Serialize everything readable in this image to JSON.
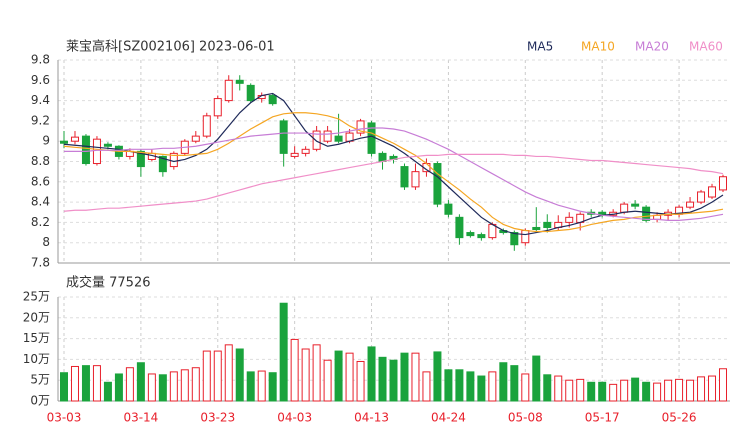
{
  "chart_data": [
    {
      "type": "candlestick",
      "title": "莱宝高科[SZ002106] 2023-06-01",
      "up_color": "#e8202b",
      "down_color": "#1aa33c",
      "grid": true,
      "ylim": [
        7.8,
        9.8
      ],
      "yticks": [
        7.8,
        8,
        8.2,
        8.4,
        8.6,
        8.8,
        9,
        9.2,
        9.4,
        9.6,
        9.8
      ],
      "open": [
        9.0,
        9.0,
        9.05,
        8.78,
        8.97,
        8.95,
        8.85,
        8.9,
        8.82,
        8.85,
        8.75,
        8.88,
        9.0,
        9.05,
        9.25,
        9.4,
        9.6,
        9.55,
        9.42,
        9.45,
        9.2,
        8.85,
        8.88,
        8.92,
        9.0,
        9.05,
        9.0,
        9.08,
        9.18,
        8.88,
        8.85,
        8.75,
        8.55,
        8.7,
        8.78,
        8.38,
        8.25,
        8.1,
        8.08,
        8.05,
        8.12,
        8.1,
        8.0,
        8.15,
        8.2,
        8.15,
        8.2,
        8.2,
        8.3,
        8.3,
        8.27,
        8.3,
        8.38,
        8.35,
        8.23,
        8.27,
        8.28,
        8.35,
        8.4,
        8.45,
        8.52
      ],
      "high": [
        9.1,
        9.1,
        9.07,
        9.05,
        8.99,
        8.96,
        8.93,
        8.92,
        8.92,
        8.86,
        8.9,
        9.02,
        9.1,
        9.28,
        9.45,
        9.65,
        9.65,
        9.57,
        9.48,
        9.47,
        9.22,
        8.95,
        8.95,
        9.15,
        9.15,
        9.27,
        9.12,
        9.22,
        9.2,
        8.9,
        8.87,
        8.78,
        8.78,
        8.83,
        8.8,
        8.42,
        8.28,
        8.12,
        8.1,
        8.2,
        8.14,
        8.12,
        8.14,
        8.35,
        8.28,
        8.27,
        8.3,
        8.3,
        8.33,
        8.32,
        8.33,
        8.4,
        8.42,
        8.37,
        8.3,
        8.33,
        8.37,
        8.45,
        8.52,
        8.58,
        8.67
      ],
      "low": [
        8.93,
        8.97,
        8.76,
        8.76,
        8.92,
        8.82,
        8.82,
        8.65,
        8.8,
        8.65,
        8.72,
        8.86,
        8.98,
        9.03,
        9.22,
        9.38,
        9.5,
        9.38,
        9.38,
        9.35,
        8.75,
        8.83,
        8.85,
        8.9,
        8.98,
        8.98,
        8.98,
        9.05,
        8.85,
        8.72,
        8.78,
        8.52,
        8.52,
        8.65,
        8.35,
        8.25,
        7.98,
        8.05,
        8.02,
        8.03,
        8.08,
        7.92,
        7.97,
        8.1,
        8.1,
        8.12,
        8.15,
        8.12,
        8.25,
        8.25,
        8.25,
        8.28,
        8.33,
        8.2,
        8.2,
        8.22,
        8.25,
        8.33,
        8.38,
        8.43,
        8.5
      ],
      "close": [
        8.98,
        9.04,
        8.78,
        9.02,
        8.95,
        8.85,
        8.9,
        8.75,
        8.88,
        8.7,
        8.88,
        9.0,
        9.05,
        9.25,
        9.42,
        9.6,
        9.57,
        9.4,
        9.45,
        9.37,
        8.88,
        8.88,
        8.92,
        9.1,
        9.1,
        9.0,
        9.08,
        9.2,
        8.88,
        8.8,
        8.82,
        8.55,
        8.7,
        8.78,
        8.38,
        8.28,
        8.05,
        8.07,
        8.05,
        8.18,
        8.1,
        7.98,
        8.12,
        8.13,
        8.15,
        8.2,
        8.25,
        8.28,
        8.28,
        8.27,
        8.3,
        8.38,
        8.36,
        8.22,
        8.27,
        8.3,
        8.35,
        8.4,
        8.5,
        8.55,
        8.65
      ],
      "series": [
        {
          "name": "MA5",
          "color": "#1f2a5a",
          "values": [
            8.97,
            8.96,
            8.95,
            8.94,
            8.93,
            8.92,
            8.9,
            8.88,
            8.86,
            8.83,
            8.8,
            8.82,
            8.86,
            8.92,
            9.02,
            9.15,
            9.28,
            9.38,
            9.45,
            9.47,
            9.4,
            9.25,
            9.1,
            9.0,
            8.95,
            8.97,
            9.0,
            9.03,
            9.05,
            9.0,
            8.95,
            8.88,
            8.8,
            8.72,
            8.65,
            8.55,
            8.45,
            8.35,
            8.25,
            8.18,
            8.12,
            8.09,
            8.08,
            8.1,
            8.12,
            8.15,
            8.17,
            8.2,
            8.24,
            8.27,
            8.28,
            8.3,
            8.31,
            8.3,
            8.29,
            8.28,
            8.29,
            8.3,
            8.34,
            8.4,
            8.47
          ]
        },
        {
          "name": "MA10",
          "color": "#f5a623",
          "values": [
            8.95,
            8.94,
            8.93,
            8.92,
            8.91,
            8.9,
            8.9,
            8.89,
            8.88,
            8.87,
            8.86,
            8.86,
            8.87,
            8.88,
            8.92,
            8.98,
            9.05,
            9.12,
            9.18,
            9.24,
            9.27,
            9.28,
            9.28,
            9.27,
            9.25,
            9.22,
            9.15,
            9.1,
            9.08,
            9.03,
            8.98,
            8.92,
            8.86,
            8.78,
            8.68,
            8.6,
            8.52,
            8.43,
            8.35,
            8.25,
            8.18,
            8.14,
            8.12,
            8.11,
            8.11,
            8.12,
            8.13,
            8.15,
            8.18,
            8.2,
            8.22,
            8.23,
            8.25,
            8.26,
            8.27,
            8.28,
            8.28,
            8.29,
            8.3,
            8.31,
            8.33
          ]
        },
        {
          "name": "MA20",
          "color": "#c77dd6",
          "values": [
            8.9,
            8.9,
            8.9,
            8.91,
            8.91,
            8.91,
            8.92,
            8.92,
            8.92,
            8.93,
            8.93,
            8.94,
            8.95,
            8.97,
            8.99,
            9.01,
            9.03,
            9.05,
            9.06,
            9.07,
            9.08,
            9.08,
            9.08,
            9.07,
            9.07,
            9.08,
            9.1,
            9.12,
            9.13,
            9.13,
            9.12,
            9.1,
            9.06,
            9.02,
            8.97,
            8.92,
            8.86,
            8.8,
            8.74,
            8.68,
            8.62,
            8.56,
            8.5,
            8.45,
            8.41,
            8.37,
            8.34,
            8.31,
            8.29,
            8.27,
            8.26,
            8.25,
            8.24,
            8.23,
            8.23,
            8.22,
            8.22,
            8.23,
            8.24,
            8.26,
            8.28
          ]
        },
        {
          "name": "MA60",
          "color": "#f08fc8",
          "values": [
            8.31,
            8.32,
            8.32,
            8.33,
            8.34,
            8.34,
            8.35,
            8.36,
            8.37,
            8.38,
            8.39,
            8.4,
            8.41,
            8.43,
            8.46,
            8.49,
            8.52,
            8.55,
            8.58,
            8.6,
            8.62,
            8.64,
            8.66,
            8.68,
            8.7,
            8.72,
            8.74,
            8.76,
            8.78,
            8.8,
            8.82,
            8.84,
            8.85,
            8.86,
            8.86,
            8.87,
            8.87,
            8.87,
            8.87,
            8.87,
            8.87,
            8.86,
            8.86,
            8.85,
            8.85,
            8.84,
            8.83,
            8.82,
            8.81,
            8.81,
            8.8,
            8.79,
            8.78,
            8.77,
            8.76,
            8.75,
            8.74,
            8.73,
            8.71,
            8.7,
            8.68
          ]
        }
      ]
    },
    {
      "type": "bar",
      "title": "成交量 77526",
      "grid": true,
      "ylim": [
        0,
        250000
      ],
      "yticks": [
        {
          "value": 0,
          "label": "0万"
        },
        {
          "value": 50000,
          "label": "5万"
        },
        {
          "value": 100000,
          "label": "10万"
        },
        {
          "value": 150000,
          "label": "15万"
        },
        {
          "value": 200000,
          "label": "20万"
        },
        {
          "value": 250000,
          "label": "25万"
        }
      ],
      "categories": [
        "03-03",
        null,
        null,
        null,
        null,
        null,
        null,
        "03-14",
        null,
        null,
        null,
        null,
        null,
        null,
        "03-23",
        null,
        null,
        null,
        null,
        null,
        null,
        "04-03",
        null,
        null,
        null,
        null,
        null,
        null,
        "04-13",
        null,
        null,
        null,
        null,
        null,
        null,
        "04-24",
        null,
        null,
        null,
        null,
        null,
        null,
        "05-08",
        null,
        null,
        null,
        null,
        null,
        null,
        "05-17",
        null,
        null,
        null,
        null,
        null,
        null,
        "05-26",
        null,
        null,
        null,
        null
      ],
      "values": [
        68000,
        83000,
        85000,
        85000,
        45000,
        65000,
        80000,
        92000,
        65000,
        63000,
        70000,
        75000,
        80000,
        120000,
        120000,
        135000,
        125000,
        70000,
        72000,
        68000,
        235000,
        148000,
        125000,
        135000,
        98000,
        120000,
        115000,
        95000,
        130000,
        105000,
        98000,
        115000,
        115000,
        70000,
        118000,
        75000,
        75000,
        70000,
        60000,
        70000,
        92000,
        85000,
        65000,
        108000,
        63000,
        60000,
        50000,
        52000,
        45000,
        45000,
        40000,
        50000,
        55000,
        45000,
        43000,
        50000,
        52000,
        50000,
        58000,
        60000,
        77526
      ]
    }
  ]
}
